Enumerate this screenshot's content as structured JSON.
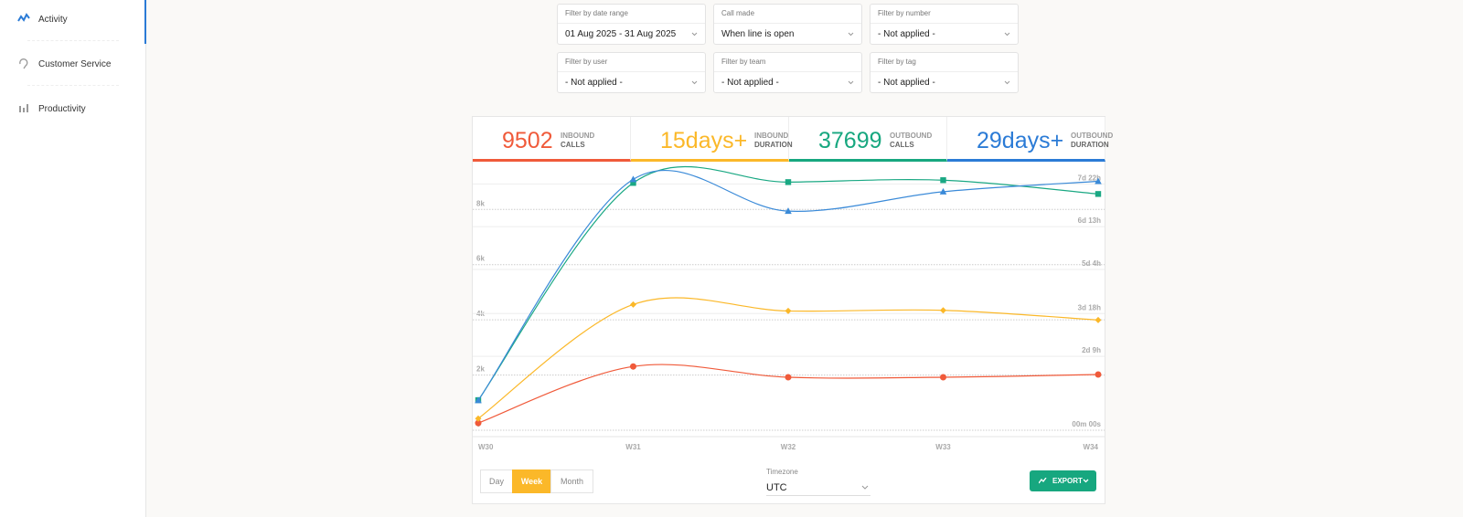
{
  "sidebar": {
    "items": [
      "Activity",
      "Customer Service",
      "Productivity"
    ]
  },
  "filters": [
    {
      "label": "Filter by date range",
      "value": "01 Aug 2025 - 31 Aug 2025"
    },
    {
      "label": "Call made",
      "value": "When line is open"
    },
    {
      "label": "Filter by number",
      "value": "- Not applied -"
    },
    {
      "label": "Filter by user",
      "value": "- Not applied -"
    },
    {
      "label": "Filter by team",
      "value": "- Not applied -"
    },
    {
      "label": "Filter by tag",
      "value": "- Not applied -"
    }
  ],
  "stats": [
    {
      "value": 9502,
      "label": [
        "INBOUND",
        "CALLS"
      ],
      "color": "#f05a3a"
    },
    {
      "value": "15days+",
      "label": [
        "INBOUND",
        "DURATION"
      ],
      "color": "#fbb829"
    },
    {
      "value": 37699,
      "label": [
        "OUTBOUND",
        "CALLS"
      ],
      "color": "#17a77f"
    },
    {
      "value": "29days+",
      "label": [
        "OUTBOUND",
        "DURATION"
      ],
      "color": "#2b7bd6"
    }
  ],
  "chart_data": {
    "type": "line",
    "categories": [
      "W30",
      "W31",
      "W32",
      "W33",
      "W34"
    ],
    "ylim": [
      0,
      9300
    ],
    "yticks": [
      0,
      {
        "value": 2000,
        "label": "2k"
      },
      {
        "value": 4000,
        "label": "4k"
      },
      {
        "value": 6000,
        "label": "6k"
      },
      {
        "value": 8000,
        "label": "8k"
      }
    ],
    "y2lim": [
      0,
      198
    ],
    "y2ticks": [
      {
        "value": 0,
        "label": "00m 00s"
      },
      {
        "value": 57,
        "label": "2d 9h"
      },
      {
        "value": 90,
        "label": "3d 18h"
      },
      {
        "value": 124,
        "label": "5d 4h"
      },
      {
        "value": 157,
        "label": "6d 13h"
      },
      {
        "value": 190,
        "label": "7d 22h"
      }
    ],
    "grid": true,
    "series": [
      {
        "name": "Inbound calls",
        "color": "#f05a3a",
        "marker": "circle",
        "values": [
          260,
          2310,
          1920,
          1920,
          2020
        ]
      },
      {
        "name": "Inbound duration",
        "color": "#fbb829",
        "marker": "diamond",
        "axis": "y2",
        "values": [
          9,
          97,
          92,
          92.5,
          85
        ]
      },
      {
        "name": "Outbound calls",
        "color": "#1aa883",
        "marker": "square",
        "values": [
          1090,
          8960,
          8990,
          9060,
          8560
        ]
      },
      {
        "name": "Outbound duration",
        "color": "#3a8ad8",
        "marker": "triangle",
        "axis": "y2",
        "values": [
          23,
          193.5,
          169,
          184,
          192
        ]
      }
    ]
  },
  "controls": {
    "periods": [
      "Day",
      "Week",
      "Month"
    ],
    "active_period": 1,
    "timezone_label": "Timezone",
    "timezone": "UTC",
    "export": "EXPORT"
  }
}
